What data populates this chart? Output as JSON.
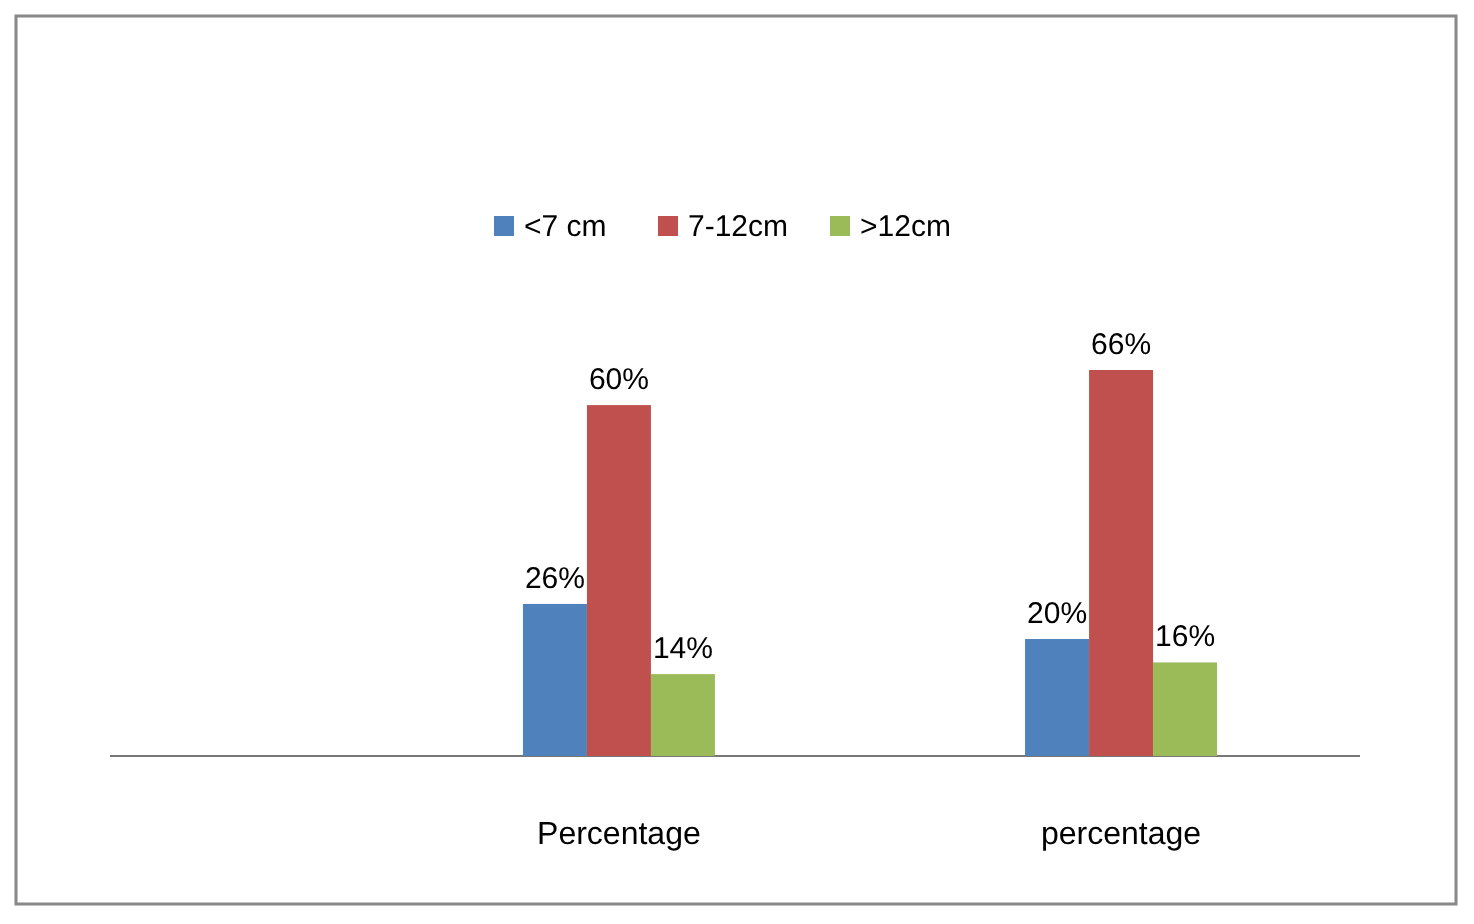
{
  "chart_data": {
    "type": "bar",
    "categories": [
      "Percentage",
      "percentage"
    ],
    "series": [
      {
        "name": "<7 cm",
        "color": "#4f81bd",
        "values": [
          26,
          20
        ],
        "value_labels": [
          "26%",
          "20%"
        ]
      },
      {
        "name": "7-12cm",
        "color": "#c0504d",
        "values": [
          60,
          66
        ],
        "value_labels": [
          "60%",
          "66%"
        ]
      },
      {
        "name": ">12cm",
        "color": "#9bbb59",
        "values": [
          14,
          16
        ],
        "value_labels": [
          "14%",
          "16%"
        ]
      }
    ],
    "legend": "top"
  }
}
